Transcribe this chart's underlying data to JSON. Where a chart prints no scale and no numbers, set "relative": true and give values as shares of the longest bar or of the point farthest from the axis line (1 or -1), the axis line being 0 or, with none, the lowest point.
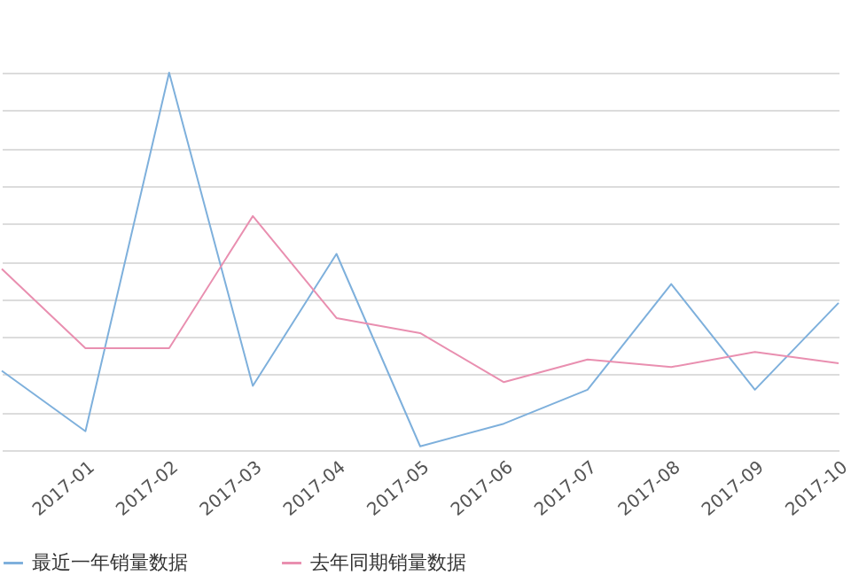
{
  "chart_data": {
    "type": "line",
    "relative": true,
    "categories": [
      null,
      "2017-01",
      "2017-02",
      "2017-03",
      "2017-04",
      "2017-05",
      "2017-06",
      "2017-07",
      "2017-08",
      "2017-09",
      "2017-10"
    ],
    "series": [
      {
        "name": "最近一年销量数据",
        "color": "#7eb0dc",
        "values": [
          0.21,
          0.05,
          1,
          0.17,
          0.52,
          0.01,
          0.07,
          0.16,
          0.44,
          0.16,
          0.39
        ]
      },
      {
        "name": "去年同期销量数据",
        "color": "#e98fb0",
        "values": [
          0.48,
          0.27,
          0.27,
          0.62,
          0.35,
          0.31,
          0.18,
          0.24,
          0.22,
          0.26,
          0.23
        ]
      }
    ],
    "grid": "y",
    "legend": "bottom",
    "marker": "none",
    "line_style": "solid"
  }
}
